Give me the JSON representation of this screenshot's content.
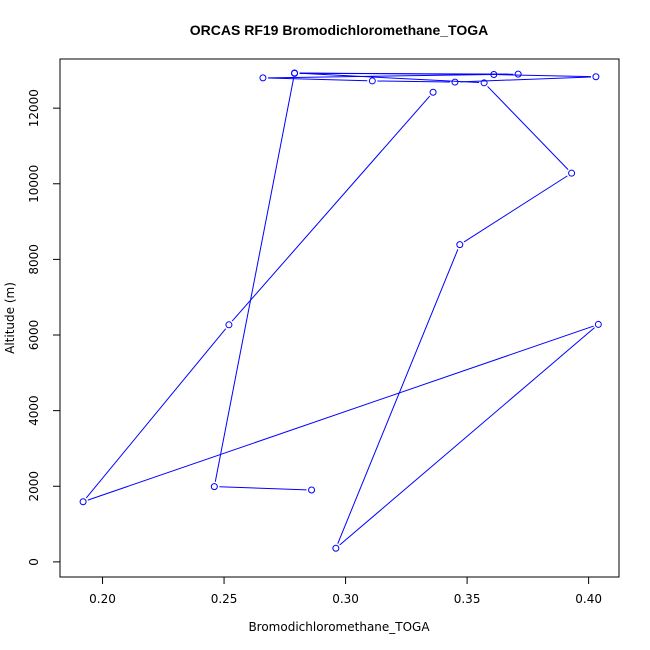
{
  "chart_data": {
    "type": "line",
    "title": "ORCAS RF19 Bromodichloromethane_TOGA",
    "xlabel": "Bromodichloromethane_TOGA",
    "ylabel": "Altitude (m)",
    "xlim": [
      0.1825,
      0.4125
    ],
    "ylim": [
      -400,
      13300
    ],
    "x_ticks": [
      0.2,
      0.25,
      0.3,
      0.35,
      0.4
    ],
    "x_tick_labels": [
      "0.20",
      "0.25",
      "0.30",
      "0.35",
      "0.40"
    ],
    "y_ticks": [
      0,
      2000,
      4000,
      6000,
      8000,
      10000,
      12000
    ],
    "y_tick_labels": [
      "0",
      "2000",
      "4000",
      "6000",
      "8000",
      "10000",
      "12000"
    ],
    "grid": false,
    "series": [
      {
        "color": "#0000ff",
        "marker": "open-circle",
        "x": [
          0.286,
          0.246,
          0.279,
          0.371,
          0.266,
          0.311,
          0.345,
          0.403,
          0.361,
          0.279,
          0.357,
          0.393,
          0.347,
          0.296,
          0.404,
          0.192,
          0.252,
          0.336
        ],
        "y": [
          1900,
          1990,
          12920,
          12900,
          12800,
          12720,
          12690,
          12830,
          12890,
          12930,
          12670,
          10280,
          8390,
          360,
          6280,
          1590,
          6270,
          12420
        ]
      }
    ]
  }
}
